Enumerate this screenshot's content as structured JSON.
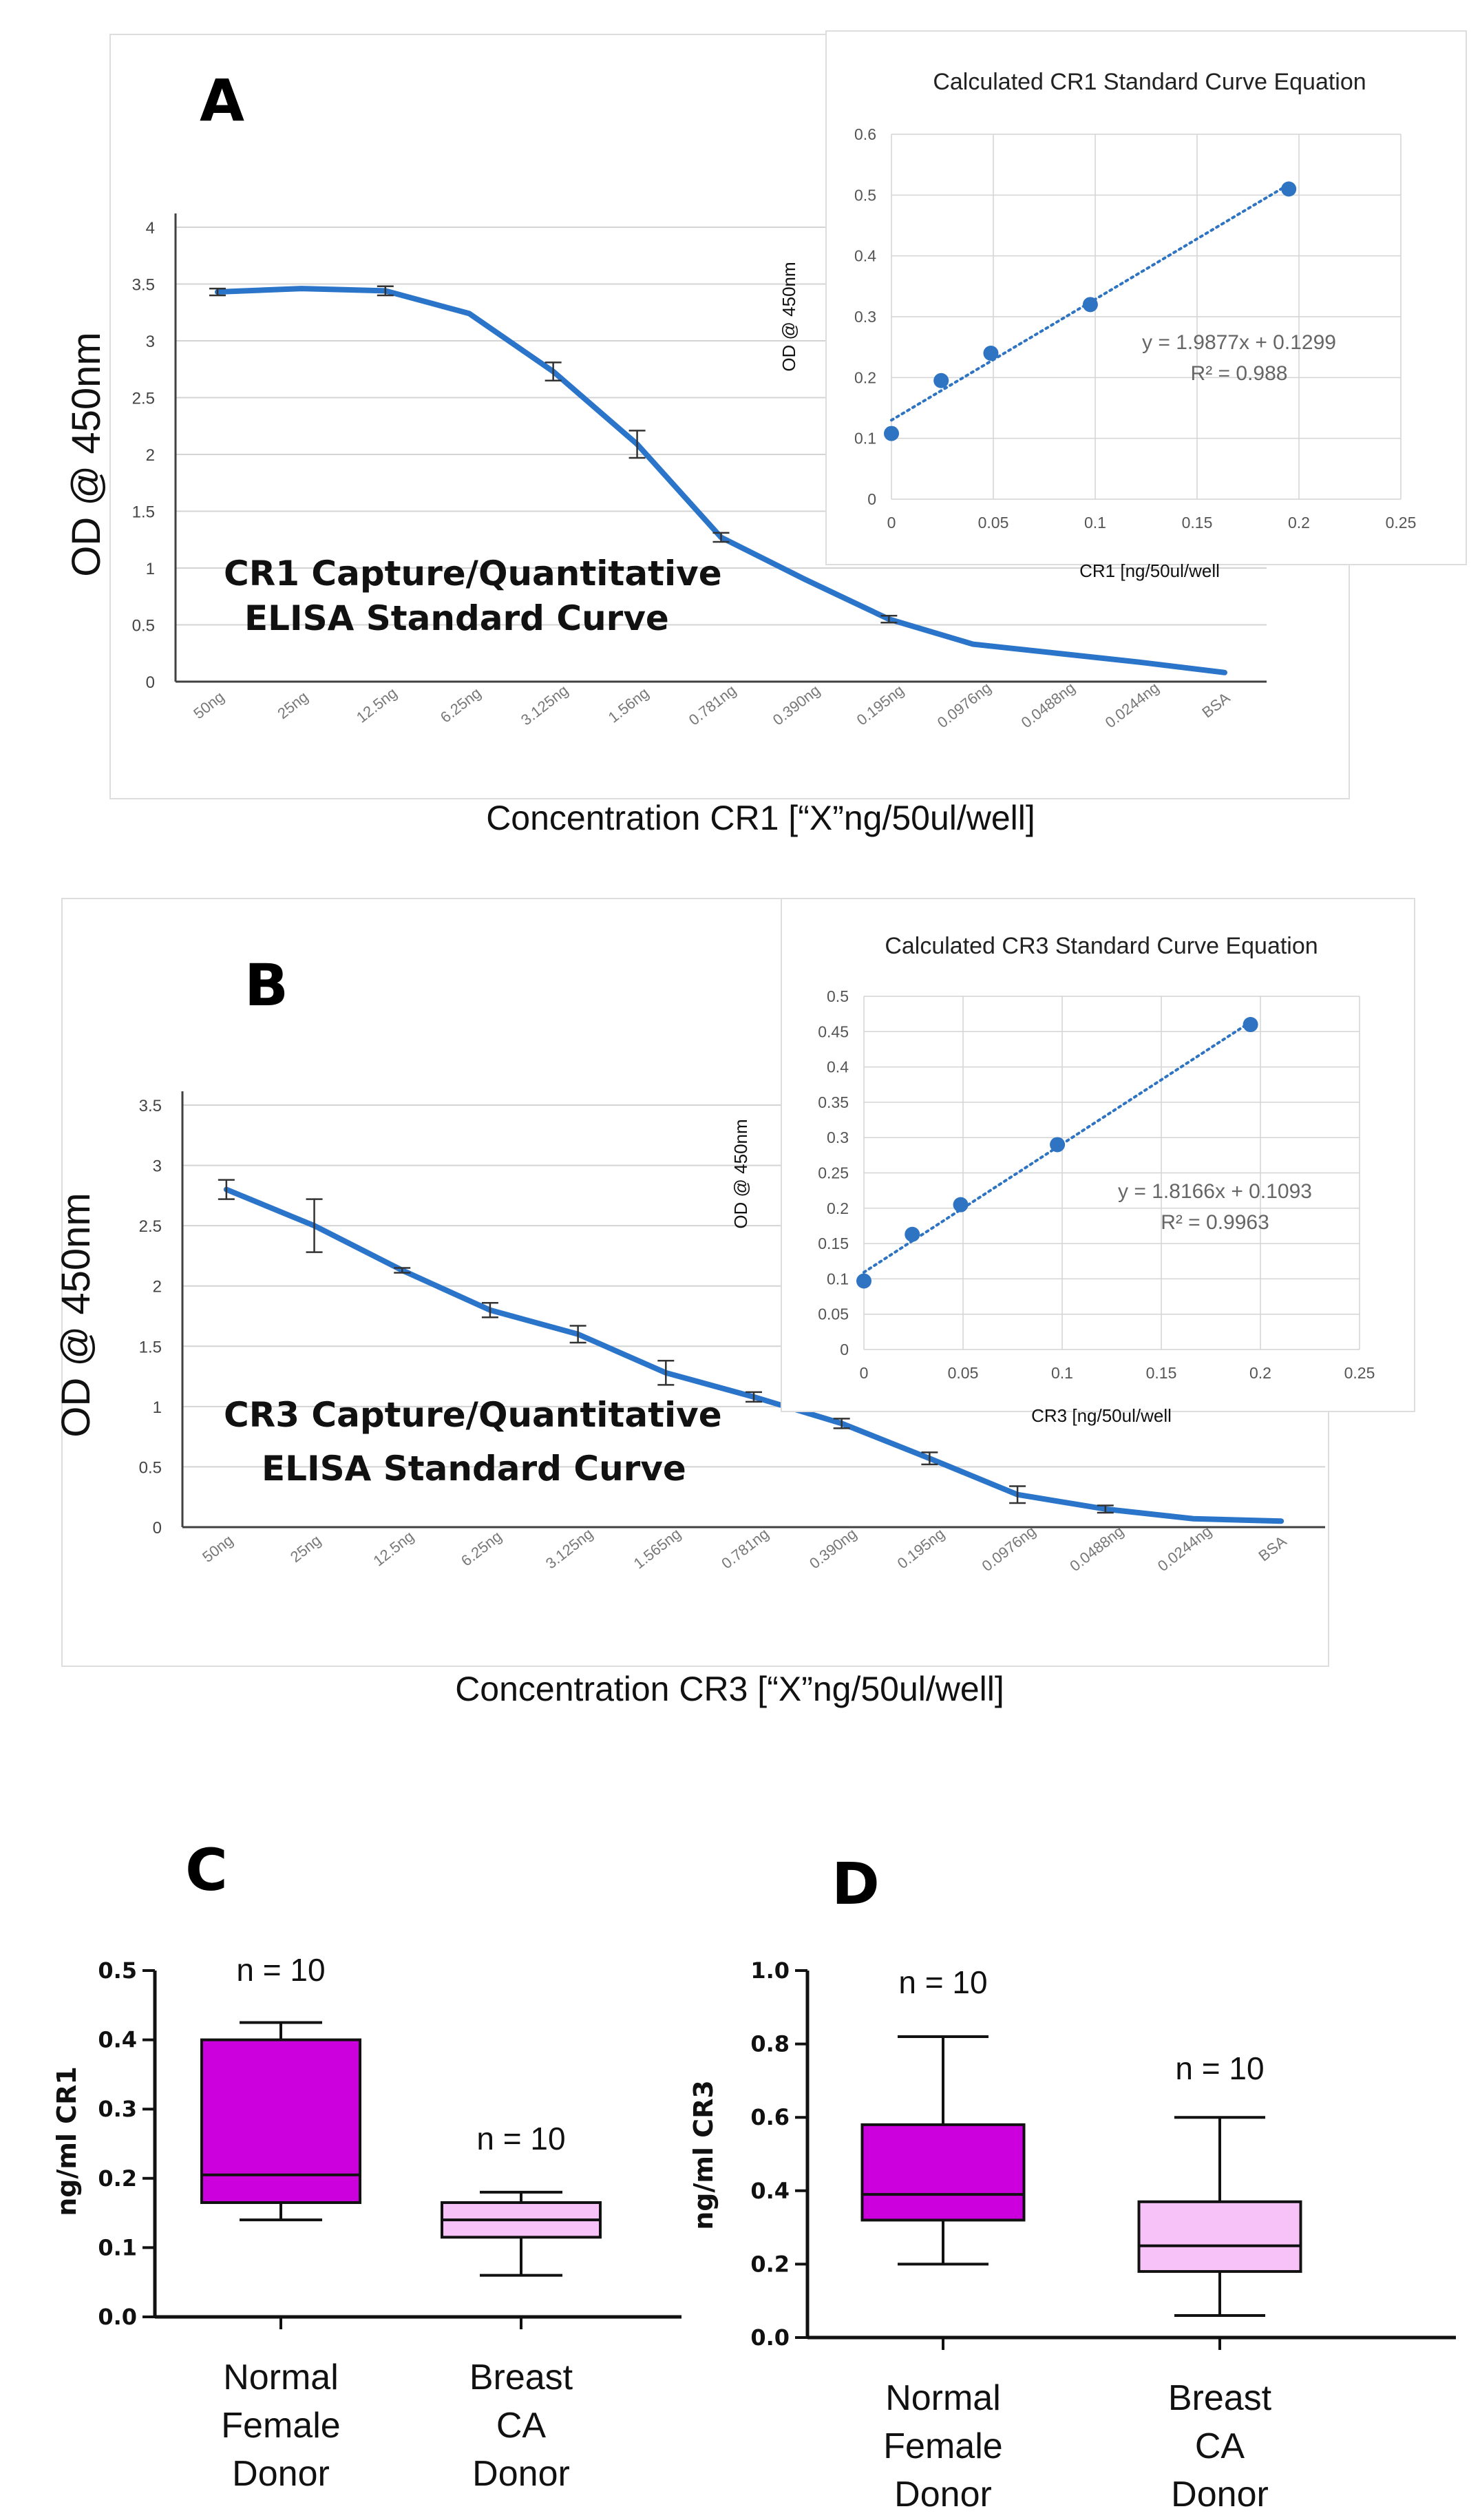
{
  "colors": {
    "curve": "#2a74c9",
    "dot": "#2e74c2",
    "trend": "#2e74c2",
    "grid": "#d4d4d4",
    "axis": "#404040",
    "normal_box": "#cc00dd",
    "ca_box": "#f7c2f7",
    "panel_border": "#dddddd"
  },
  "chart_data": [
    {
      "panel": "A",
      "type": "line",
      "panel_label": "A",
      "annotation_lines": [
        "CR1 Capture/Quantitative",
        "ELISA Standard Curve"
      ],
      "ylabel": "OD @ 450nm",
      "xlabel": "Concentration CR1 [“X”ng/50ul/well]",
      "categories": [
        "50ng",
        "25ng",
        "12.5ng",
        "6.25ng",
        "3.125ng",
        "1.56ng",
        "0.781ng",
        "0.390ng",
        "0.195ng",
        "0.0976ng",
        "0.0488ng",
        "0.0244ng",
        "BSA"
      ],
      "values": [
        3.43,
        3.46,
        3.44,
        3.24,
        2.73,
        2.09,
        1.27,
        0.9,
        0.55,
        0.33,
        0.25,
        0.17,
        0.08
      ],
      "errors": [
        0.03,
        0.0,
        0.04,
        0.0,
        0.08,
        0.12,
        0.04,
        0.0,
        0.03,
        0.0,
        0.0,
        0.0,
        0.0
      ],
      "ylim": [
        0,
        4
      ],
      "yticks": [
        "0",
        "0.5",
        "1",
        "1.5",
        "2",
        "2.5",
        "3",
        "3.5",
        "4"
      ],
      "grid": true,
      "inset": {
        "type": "scatter",
        "title": "Calculated CR1 Standard Curve Equation",
        "xlabel": "CR1 [ng/50ul/well",
        "ylabel": "OD @ 450nm",
        "x": [
          0,
          0.0244,
          0.0488,
          0.0976,
          0.195
        ],
        "y": [
          0.108,
          0.195,
          0.24,
          0.32,
          0.51
        ],
        "xlim": [
          0,
          0.25
        ],
        "ylim": [
          0,
          0.6
        ],
        "xticks": [
          "0",
          "0.05",
          "0.1",
          "0.15",
          "0.2",
          "0.25"
        ],
        "yticks": [
          "0",
          "0.1",
          "0.2",
          "0.3",
          "0.4",
          "0.5",
          "0.6"
        ],
        "trend": {
          "slope": 1.9877,
          "intercept": 0.1299
        },
        "equation": "y = 1.9877x + 0.1299",
        "r2": "R² = 0.988",
        "grid": true
      }
    },
    {
      "panel": "B",
      "type": "line",
      "panel_label": "B",
      "annotation_lines": [
        "CR3 Capture/Quantitative",
        "ELISA Standard Curve"
      ],
      "ylabel": "OD @ 450nm",
      "xlabel": "Concentration CR3 [“X”ng/50ul/well]",
      "categories": [
        "50ng",
        "25ng",
        "12.5ng",
        "6.25ng",
        "3.125ng",
        "1.565ng",
        "0.781ng",
        "0.390ng",
        "0.195ng",
        "0.0976ng",
        "0.0488ng",
        "0.0244ng",
        "BSA"
      ],
      "values": [
        2.8,
        2.5,
        2.13,
        1.8,
        1.6,
        1.28,
        1.08,
        0.86,
        0.57,
        0.27,
        0.15,
        0.07,
        0.05
      ],
      "errors": [
        0.08,
        0.22,
        0.02,
        0.06,
        0.07,
        0.1,
        0.04,
        0.04,
        0.05,
        0.07,
        0.03,
        0.0,
        0.0
      ],
      "ylim": [
        0,
        3.5
      ],
      "yticks": [
        "0",
        "0.5",
        "1",
        "1.5",
        "2",
        "2.5",
        "3",
        "3.5"
      ],
      "grid": true,
      "inset": {
        "type": "scatter",
        "title": "Calculated CR3 Standard Curve Equation",
        "xlabel": "CR3  [ng/50ul/well",
        "ylabel": "OD @ 450nm",
        "x": [
          0,
          0.0244,
          0.0488,
          0.0976,
          0.195
        ],
        "y": [
          0.097,
          0.163,
          0.205,
          0.29,
          0.46
        ],
        "xlim": [
          0,
          0.25
        ],
        "ylim": [
          0,
          0.5
        ],
        "xticks": [
          "0",
          "0.05",
          "0.1",
          "0.15",
          "0.2",
          "0.25"
        ],
        "yticks": [
          "0",
          "0.05",
          "0.1",
          "0.15",
          "0.2",
          "0.25",
          "0.3",
          "0.35",
          "0.4",
          "0.45",
          "0.5"
        ],
        "trend": {
          "slope": 1.8166,
          "intercept": 0.1093
        },
        "equation": "y = 1.8166x + 0.1093",
        "r2": "R² = 0.9963",
        "grid": true
      }
    },
    {
      "panel": "C",
      "type": "box",
      "panel_label": "C",
      "ylabel": "ng/ml CR1",
      "ylim": [
        0,
        0.5
      ],
      "yticks": [
        "0.0",
        "0.1",
        "0.2",
        "0.3",
        "0.4",
        "0.5"
      ],
      "groups": [
        {
          "label_lines": [
            "Normal",
            "Female",
            "Donor"
          ],
          "n_label": "n = 10",
          "min": 0.14,
          "q1": 0.165,
          "median": 0.205,
          "q3": 0.4,
          "max": 0.425
        },
        {
          "label_lines": [
            "Breast",
            "CA",
            "Donor"
          ],
          "n_label": "n = 10",
          "min": 0.06,
          "q1": 0.115,
          "median": 0.14,
          "q3": 0.165,
          "max": 0.18
        }
      ]
    },
    {
      "panel": "D",
      "type": "box",
      "panel_label": "D",
      "ylabel": "ng/ml CR3",
      "ylim": [
        0,
        1.0
      ],
      "yticks": [
        "0.0",
        "0.2",
        "0.4",
        "0.6",
        "0.8",
        "1.0"
      ],
      "groups": [
        {
          "label_lines": [
            "Normal",
            "Female",
            "Donor"
          ],
          "n_label": "n = 10",
          "min": 0.2,
          "q1": 0.32,
          "median": 0.39,
          "q3": 0.58,
          "max": 0.82
        },
        {
          "label_lines": [
            "Breast",
            "CA",
            "Donor"
          ],
          "n_label": "n = 10",
          "min": 0.06,
          "q1": 0.18,
          "median": 0.25,
          "q3": 0.37,
          "max": 0.6
        }
      ]
    }
  ]
}
